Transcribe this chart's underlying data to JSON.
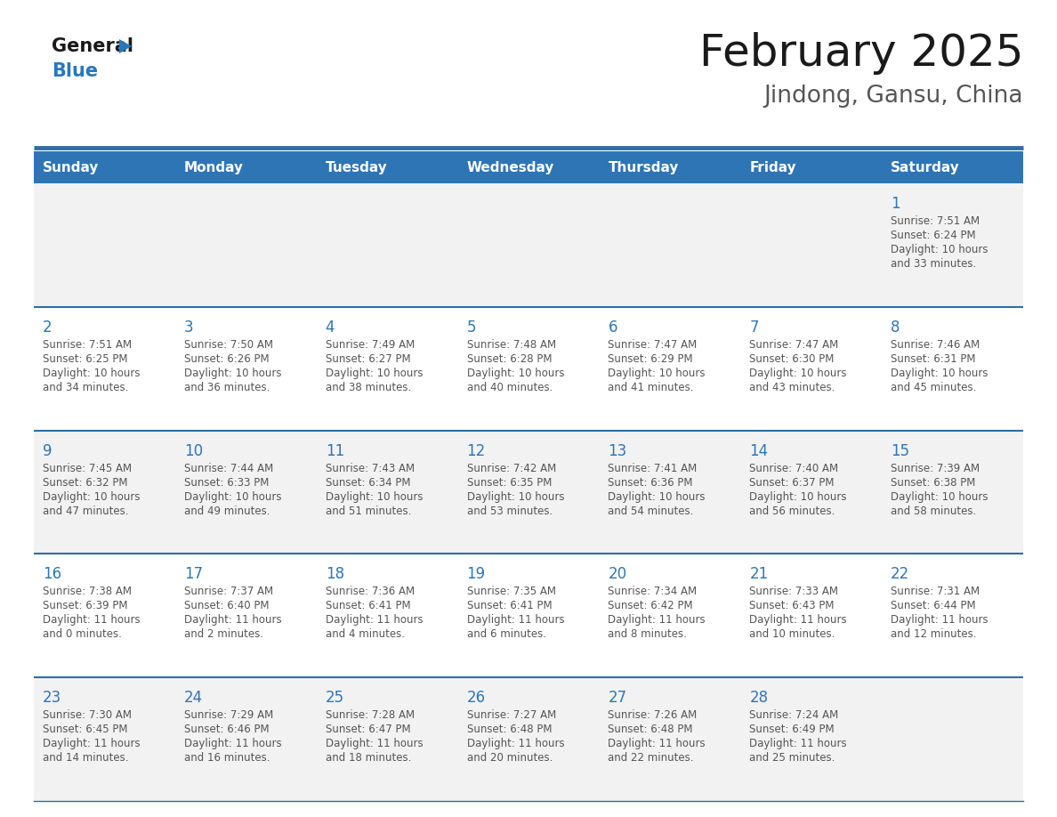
{
  "title": "February 2025",
  "subtitle": "Jindong, Gansu, China",
  "header_color": "#2E75B6",
  "header_text_color": "#FFFFFF",
  "day_names": [
    "Sunday",
    "Monday",
    "Tuesday",
    "Wednesday",
    "Thursday",
    "Friday",
    "Saturday"
  ],
  "background_color": "#FFFFFF",
  "cell_bg_odd": "#F2F2F2",
  "cell_bg_even": "#FFFFFF",
  "separator_color": "#2E6EA6",
  "day_number_color": "#2E75B6",
  "text_color": "#555555",
  "title_color": "#1a1a1a",
  "logo_black": "#1a1a1a",
  "logo_blue": "#2878BE",
  "logo_triangle_color": "#2878BE",
  "calendar_data": [
    [
      null,
      null,
      null,
      null,
      null,
      null,
      {
        "day": 1,
        "sunrise": "7:51 AM",
        "sunset": "6:24 PM",
        "daylight_h": "10 hours",
        "daylight_m": "and 33 minutes."
      }
    ],
    [
      {
        "day": 2,
        "sunrise": "7:51 AM",
        "sunset": "6:25 PM",
        "daylight_h": "10 hours",
        "daylight_m": "and 34 minutes."
      },
      {
        "day": 3,
        "sunrise": "7:50 AM",
        "sunset": "6:26 PM",
        "daylight_h": "10 hours",
        "daylight_m": "and 36 minutes."
      },
      {
        "day": 4,
        "sunrise": "7:49 AM",
        "sunset": "6:27 PM",
        "daylight_h": "10 hours",
        "daylight_m": "and 38 minutes."
      },
      {
        "day": 5,
        "sunrise": "7:48 AM",
        "sunset": "6:28 PM",
        "daylight_h": "10 hours",
        "daylight_m": "and 40 minutes."
      },
      {
        "day": 6,
        "sunrise": "7:47 AM",
        "sunset": "6:29 PM",
        "daylight_h": "10 hours",
        "daylight_m": "and 41 minutes."
      },
      {
        "day": 7,
        "sunrise": "7:47 AM",
        "sunset": "6:30 PM",
        "daylight_h": "10 hours",
        "daylight_m": "and 43 minutes."
      },
      {
        "day": 8,
        "sunrise": "7:46 AM",
        "sunset": "6:31 PM",
        "daylight_h": "10 hours",
        "daylight_m": "and 45 minutes."
      }
    ],
    [
      {
        "day": 9,
        "sunrise": "7:45 AM",
        "sunset": "6:32 PM",
        "daylight_h": "10 hours",
        "daylight_m": "and 47 minutes."
      },
      {
        "day": 10,
        "sunrise": "7:44 AM",
        "sunset": "6:33 PM",
        "daylight_h": "10 hours",
        "daylight_m": "and 49 minutes."
      },
      {
        "day": 11,
        "sunrise": "7:43 AM",
        "sunset": "6:34 PM",
        "daylight_h": "10 hours",
        "daylight_m": "and 51 minutes."
      },
      {
        "day": 12,
        "sunrise": "7:42 AM",
        "sunset": "6:35 PM",
        "daylight_h": "10 hours",
        "daylight_m": "and 53 minutes."
      },
      {
        "day": 13,
        "sunrise": "7:41 AM",
        "sunset": "6:36 PM",
        "daylight_h": "10 hours",
        "daylight_m": "and 54 minutes."
      },
      {
        "day": 14,
        "sunrise": "7:40 AM",
        "sunset": "6:37 PM",
        "daylight_h": "10 hours",
        "daylight_m": "and 56 minutes."
      },
      {
        "day": 15,
        "sunrise": "7:39 AM",
        "sunset": "6:38 PM",
        "daylight_h": "10 hours",
        "daylight_m": "and 58 minutes."
      }
    ],
    [
      {
        "day": 16,
        "sunrise": "7:38 AM",
        "sunset": "6:39 PM",
        "daylight_h": "11 hours",
        "daylight_m": "and 0 minutes."
      },
      {
        "day": 17,
        "sunrise": "7:37 AM",
        "sunset": "6:40 PM",
        "daylight_h": "11 hours",
        "daylight_m": "and 2 minutes."
      },
      {
        "day": 18,
        "sunrise": "7:36 AM",
        "sunset": "6:41 PM",
        "daylight_h": "11 hours",
        "daylight_m": "and 4 minutes."
      },
      {
        "day": 19,
        "sunrise": "7:35 AM",
        "sunset": "6:41 PM",
        "daylight_h": "11 hours",
        "daylight_m": "and 6 minutes."
      },
      {
        "day": 20,
        "sunrise": "7:34 AM",
        "sunset": "6:42 PM",
        "daylight_h": "11 hours",
        "daylight_m": "and 8 minutes."
      },
      {
        "day": 21,
        "sunrise": "7:33 AM",
        "sunset": "6:43 PM",
        "daylight_h": "11 hours",
        "daylight_m": "and 10 minutes."
      },
      {
        "day": 22,
        "sunrise": "7:31 AM",
        "sunset": "6:44 PM",
        "daylight_h": "11 hours",
        "daylight_m": "and 12 minutes."
      }
    ],
    [
      {
        "day": 23,
        "sunrise": "7:30 AM",
        "sunset": "6:45 PM",
        "daylight_h": "11 hours",
        "daylight_m": "and 14 minutes."
      },
      {
        "day": 24,
        "sunrise": "7:29 AM",
        "sunset": "6:46 PM",
        "daylight_h": "11 hours",
        "daylight_m": "and 16 minutes."
      },
      {
        "day": 25,
        "sunrise": "7:28 AM",
        "sunset": "6:47 PM",
        "daylight_h": "11 hours",
        "daylight_m": "and 18 minutes."
      },
      {
        "day": 26,
        "sunrise": "7:27 AM",
        "sunset": "6:48 PM",
        "daylight_h": "11 hours",
        "daylight_m": "and 20 minutes."
      },
      {
        "day": 27,
        "sunrise": "7:26 AM",
        "sunset": "6:48 PM",
        "daylight_h": "11 hours",
        "daylight_m": "and 22 minutes."
      },
      {
        "day": 28,
        "sunrise": "7:24 AM",
        "sunset": "6:49 PM",
        "daylight_h": "11 hours",
        "daylight_m": "and 25 minutes."
      },
      null
    ]
  ]
}
